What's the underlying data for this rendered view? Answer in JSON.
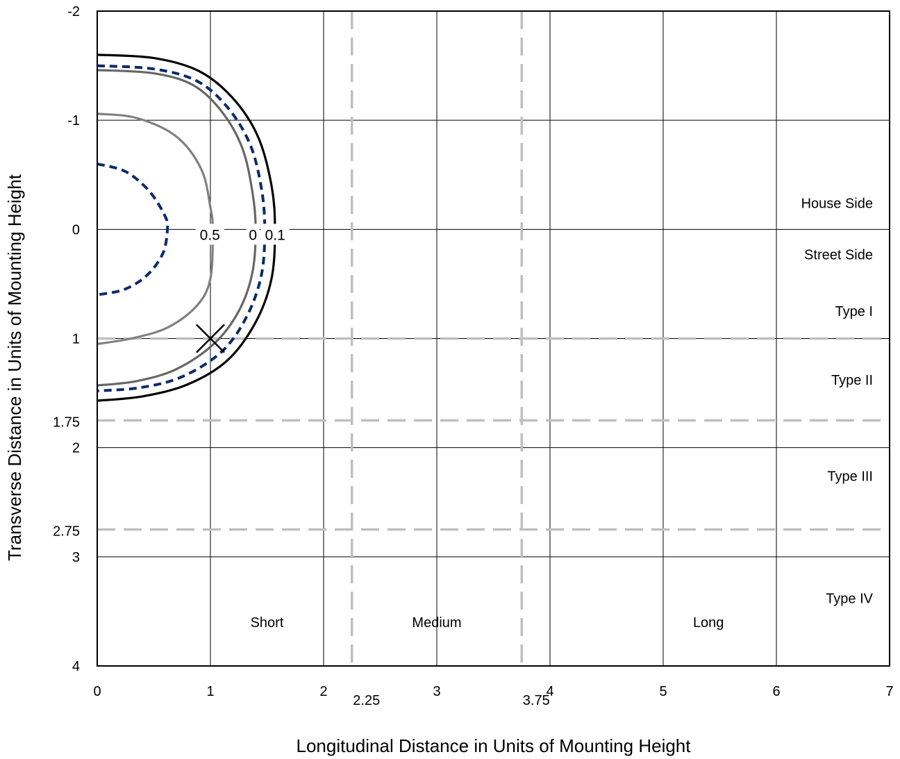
{
  "chart_data": {
    "type": "line",
    "title": "",
    "xlabel": "Longitudinal Distance in Units of Mounting Height",
    "ylabel": "Transverse Distance in Units of Mounting Height",
    "xlim": [
      0,
      7
    ],
    "ylim": [
      -2,
      4
    ],
    "y_inverted": true,
    "grid": true,
    "legend": "none",
    "x_ticks": [
      "0",
      "1",
      "2",
      "3",
      "4",
      "5",
      "6",
      "7"
    ],
    "y_ticks": [
      "-2",
      "-1",
      "0",
      "1",
      "2",
      "3",
      "4"
    ],
    "extra_x_ticks": [
      "2.25",
      "3.75"
    ],
    "extra_y_ticks": [
      "1.75",
      "2.75"
    ],
    "reference_lines": {
      "vertical": [
        2.25,
        3.75
      ],
      "horizontal": [
        1,
        1.75,
        2.75
      ],
      "color": "#bfbfbf"
    },
    "region_labels": {
      "longitudinal": [
        "Short",
        "Medium",
        "Long"
      ],
      "transverse": [
        "House Side",
        "Street Side",
        "Type I",
        "Type II",
        "Type III",
        "Type IV"
      ]
    },
    "marker": {
      "symbol": "X",
      "x": 1,
      "y": 1
    },
    "contours": [
      {
        "label": "0.1",
        "style": "solid",
        "color": "#000000",
        "points": [
          [
            0,
            -1.6
          ],
          [
            0.5,
            -1.57
          ],
          [
            0.9,
            -1.45
          ],
          [
            1.2,
            -1.2
          ],
          [
            1.42,
            -0.85
          ],
          [
            1.54,
            -0.4
          ],
          [
            1.57,
            0
          ],
          [
            1.54,
            0.45
          ],
          [
            1.4,
            0.85
          ],
          [
            1.15,
            1.2
          ],
          [
            0.8,
            1.42
          ],
          [
            0.4,
            1.53
          ],
          [
            0,
            1.57
          ]
        ]
      },
      {
        "label": "",
        "style": "dashed",
        "color": "#0b2a6b",
        "points": [
          [
            0,
            -1.5
          ],
          [
            0.5,
            -1.47
          ],
          [
            0.88,
            -1.36
          ],
          [
            1.15,
            -1.12
          ],
          [
            1.35,
            -0.78
          ],
          [
            1.45,
            -0.38
          ],
          [
            1.48,
            0
          ],
          [
            1.45,
            0.42
          ],
          [
            1.32,
            0.8
          ],
          [
            1.1,
            1.12
          ],
          [
            0.75,
            1.35
          ],
          [
            0.38,
            1.45
          ],
          [
            0,
            1.48
          ]
        ]
      },
      {
        "label": "0",
        "style": "solid",
        "color": "#666666",
        "points": [
          [
            0,
            -1.46
          ],
          [
            0.5,
            -1.43
          ],
          [
            0.85,
            -1.32
          ],
          [
            1.1,
            -1.08
          ],
          [
            1.28,
            -0.75
          ],
          [
            1.37,
            -0.35
          ],
          [
            1.4,
            0
          ],
          [
            1.37,
            0.4
          ],
          [
            1.25,
            0.75
          ],
          [
            1.03,
            1.05
          ],
          [
            0.7,
            1.28
          ],
          [
            0.35,
            1.39
          ],
          [
            0,
            1.43
          ]
        ]
      },
      {
        "label": "0.5",
        "style": "solid",
        "color": "#808080",
        "points": [
          [
            0,
            -1.06
          ],
          [
            0.35,
            -1.02
          ],
          [
            0.7,
            -0.85
          ],
          [
            0.92,
            -0.55
          ],
          [
            1.0,
            -0.2
          ],
          [
            1.02,
            0
          ],
          [
            1.0,
            0.45
          ],
          [
            0.88,
            0.7
          ],
          [
            0.62,
            0.9
          ],
          [
            0.3,
            1.0
          ],
          [
            0,
            1.05
          ]
        ]
      },
      {
        "label": "",
        "style": "dashed",
        "color": "#0b2a6b",
        "points": [
          [
            0,
            -0.6
          ],
          [
            0.25,
            -0.53
          ],
          [
            0.46,
            -0.35
          ],
          [
            0.6,
            -0.12
          ],
          [
            0.62,
            0
          ],
          [
            0.58,
            0.22
          ],
          [
            0.44,
            0.42
          ],
          [
            0.24,
            0.55
          ],
          [
            0,
            0.6
          ]
        ]
      }
    ]
  }
}
